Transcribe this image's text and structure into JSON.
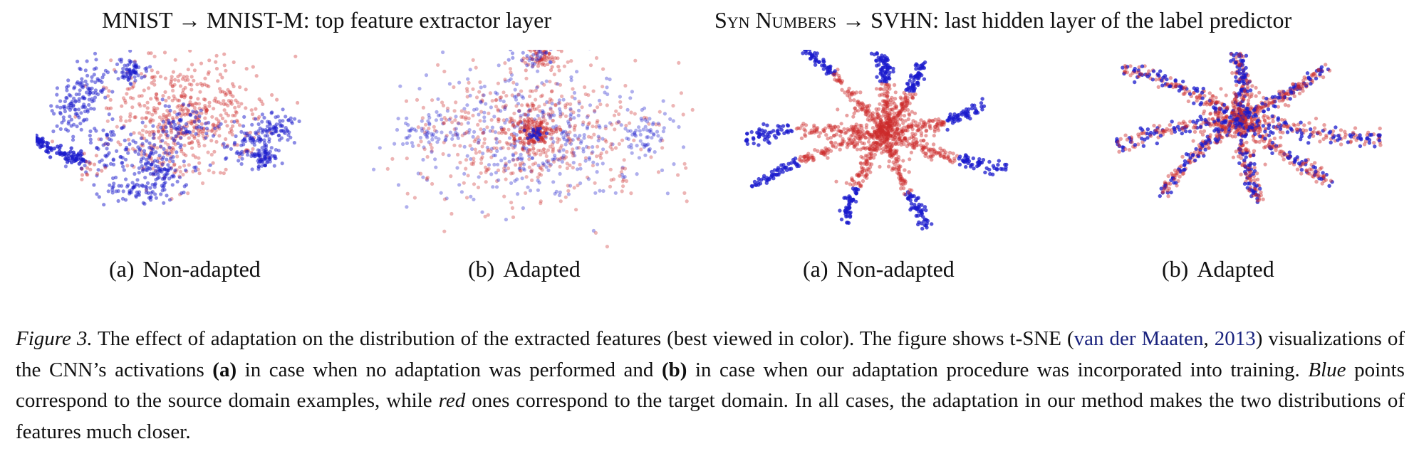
{
  "titles": {
    "left": {
      "source": "MNIST",
      "arrow": "→",
      "target": "MNIST-M",
      "rest": ": top feature extractor layer"
    },
    "right": {
      "source": "Syn Numbers",
      "arrow": "→",
      "target": "SVHN",
      "rest": ": last hidden layer of the label predictor"
    }
  },
  "panels": [
    {
      "label": "(a)",
      "name": "Non-adapted",
      "pattern": "blobs-separated"
    },
    {
      "label": "(b)",
      "name": "Adapted",
      "pattern": "blobs-mixed"
    },
    {
      "label": "(a)",
      "name": "Non-adapted",
      "pattern": "arms-separated"
    },
    {
      "label": "(b)",
      "name": "Adapted",
      "pattern": "arms-mixed"
    }
  ],
  "colors": {
    "source": "#1a1acc",
    "target": "#cc2a2a"
  },
  "legend_semantics": {
    "source_color": "Blue",
    "target_color": "red"
  },
  "caption": {
    "figure_label": "Figure 3.",
    "text1": " The effect of adaptation on the distribution of the extracted features (best viewed in color). The figure shows t-SNE (",
    "cite_author": "van der Maaten",
    "cite_sep": ", ",
    "cite_year": "2013",
    "text2": ") visualizations of the CNN’s activations ",
    "bold_a": "(a)",
    "text3": " in case when no adaptation was performed and ",
    "bold_b": "(b)",
    "text4": " in case when our adaptation procedure was incorporated into training. ",
    "blue_word": "Blue",
    "text5": " points correspond to the source domain examples, while ",
    "red_word": "red",
    "text6": " ones correspond to the target domain. In all cases, the adaptation in our method makes the two distributions of features much closer."
  }
}
